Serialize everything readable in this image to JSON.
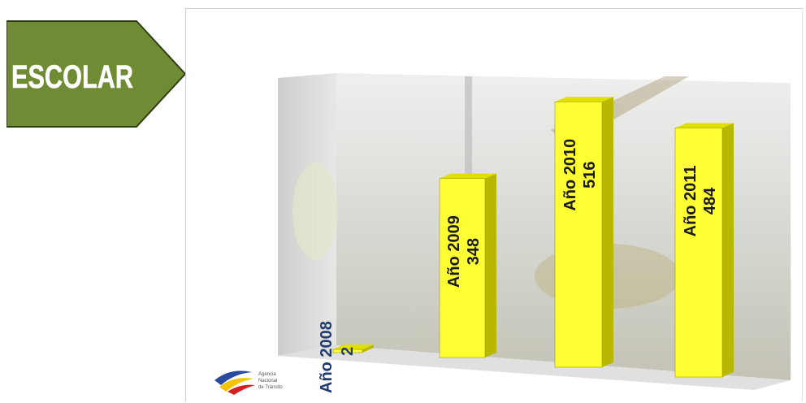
{
  "badge": {
    "label": "ESCOLAR"
  },
  "logo": {
    "lines": [
      "Agencia",
      "Nacional",
      "de Tránsito"
    ]
  },
  "colors": {
    "badge_fill": "#6f8c35",
    "bar_face": "#ffff33",
    "bar_side": "#b8b800",
    "bar_top": "#e0e000",
    "label_color": "#1a1a1a",
    "label_color_small": "#1f3a6e"
  },
  "chart_data": {
    "type": "bar",
    "categories": [
      "Año 2008",
      "Año 2009",
      "Año 2010",
      "Año 2011"
    ],
    "values": [
      2,
      348,
      516,
      484
    ],
    "title": "",
    "xlabel": "",
    "ylabel": "",
    "ylim": [
      0,
      600
    ],
    "grid": false,
    "legend": "none",
    "style": "3d-column"
  }
}
